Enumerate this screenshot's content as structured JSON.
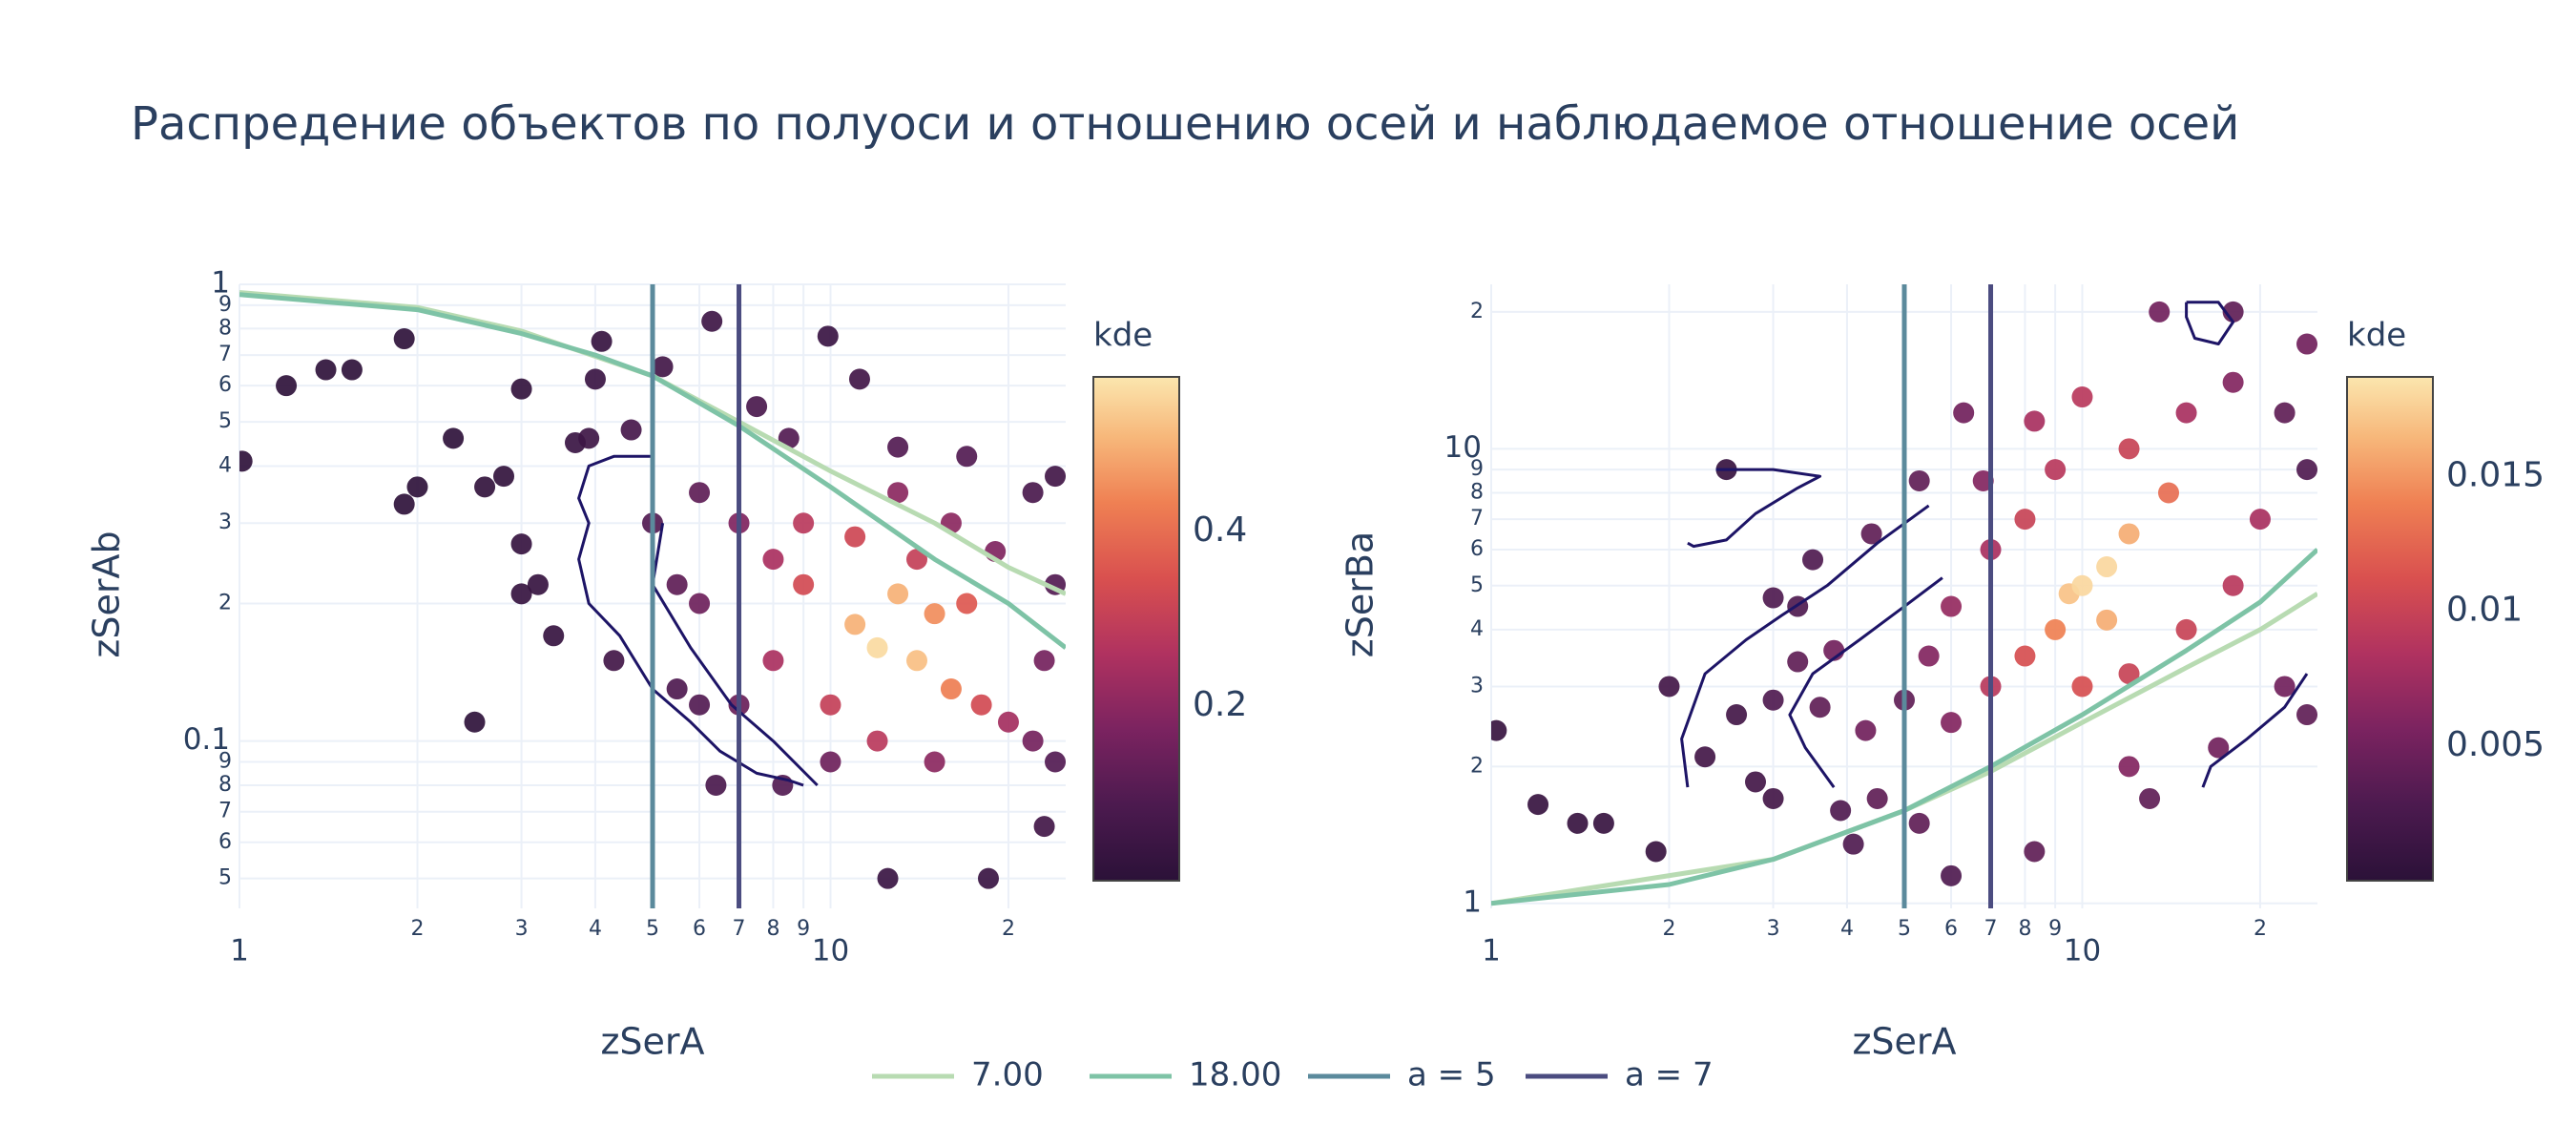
{
  "title": "Распредение объектов по полуоси и отношению осей и наблюдаемое отношение осей",
  "legend": [
    {
      "name": "7.00",
      "color": "#b8dbb2"
    },
    {
      "name": "18.00",
      "color": "#7ec3a6"
    },
    {
      "name": "a = 5",
      "color": "#5b8a9c"
    },
    {
      "name": "a = 7",
      "color": "#4b4c80"
    }
  ],
  "colorscale": [
    [
      0,
      "#2b1138"
    ],
    [
      0.15,
      "#4c1a4f"
    ],
    [
      0.3,
      "#7b2360"
    ],
    [
      0.45,
      "#b03260"
    ],
    [
      0.6,
      "#d9504f"
    ],
    [
      0.75,
      "#ef8053"
    ],
    [
      0.88,
      "#f7b77a"
    ],
    [
      1,
      "#fbe6ae"
    ]
  ],
  "chart_data": [
    {
      "type": "scatter",
      "xlabel": "zSerA",
      "ylabel": "zSerAb",
      "log_x": true,
      "log_y": true,
      "grid": true,
      "xlim": [
        1,
        25
      ],
      "ylim": [
        0.043,
        1
      ],
      "xticks": [
        1,
        2,
        3,
        4,
        5,
        6,
        7,
        8,
        9,
        10,
        {
          "value": 20,
          "label": "2"
        }
      ],
      "yticks": [
        {
          "value": 0.05,
          "label": "5"
        },
        {
          "value": 0.06,
          "label": "6"
        },
        {
          "value": 0.07,
          "label": "7"
        },
        {
          "value": 0.08,
          "label": "8"
        },
        {
          "value": 0.09,
          "label": "9"
        },
        0.1,
        {
          "value": 0.2,
          "label": "2"
        },
        {
          "value": 0.3,
          "label": "3"
        },
        {
          "value": 0.4,
          "label": "4"
        },
        {
          "value": 0.5,
          "label": "5"
        },
        {
          "value": 0.6,
          "label": "6"
        },
        {
          "value": 0.7,
          "label": "7"
        },
        {
          "value": 0.8,
          "label": "8"
        },
        {
          "value": 0.9,
          "label": "9"
        },
        1
      ],
      "colorbar": {
        "title": "kde",
        "clim": [
          0,
          0.577
        ],
        "ticks": [
          0.2,
          0.4
        ]
      },
      "points": {
        "x": [
          1.01,
          1.2,
          1.4,
          1.55,
          1.9,
          1.9,
          2.0,
          2.3,
          2.6,
          2.5,
          2.8,
          3.0,
          3.0,
          3.0,
          3.2,
          3.4,
          3.7,
          3.9,
          4.0,
          4.1,
          4.3,
          4.6,
          5.2,
          6.3,
          5.5,
          6.0,
          6.4,
          8.3,
          9.9,
          11.2,
          12.5,
          18.5,
          23,
          24,
          22,
          17,
          13,
          8.5,
          7.5,
          5,
          5.5,
          7,
          24,
          22,
          6,
          12,
          10,
          23,
          15,
          9,
          13,
          16,
          19,
          24,
          6,
          7,
          8,
          20,
          18,
          11,
          14,
          17,
          8,
          9,
          16,
          15,
          10,
          13,
          14,
          12,
          11
        ],
        "y": [
          0.41,
          0.6,
          0.65,
          0.65,
          0.76,
          0.33,
          0.36,
          0.46,
          0.36,
          0.11,
          0.38,
          0.59,
          0.27,
          0.21,
          0.22,
          0.17,
          0.45,
          0.46,
          0.62,
          0.75,
          0.15,
          0.48,
          0.66,
          0.83,
          0.13,
          0.12,
          0.08,
          0.08,
          0.77,
          0.62,
          0.05,
          0.05,
          0.065,
          0.38,
          0.35,
          0.42,
          0.44,
          0.46,
          0.54,
          0.3,
          0.22,
          0.12,
          0.09,
          0.1,
          0.35,
          0.1,
          0.09,
          0.15,
          0.09,
          0.3,
          0.35,
          0.3,
          0.26,
          0.22,
          0.2,
          0.3,
          0.15,
          0.11,
          0.12,
          0.28,
          0.25,
          0.2,
          0.25,
          0.22,
          0.13,
          0.19,
          0.12,
          0.21,
          0.15,
          0.16,
          0.18
        ],
        "kde": [
          0.01,
          0.01,
          0.01,
          0.01,
          0.01,
          0.01,
          0.01,
          0.01,
          0.02,
          0.01,
          0.02,
          0.02,
          0.03,
          0.03,
          0.03,
          0.03,
          0.04,
          0.05,
          0.04,
          0.03,
          0.06,
          0.07,
          0.06,
          0.05,
          0.09,
          0.1,
          0.08,
          0.1,
          0.04,
          0.06,
          0.04,
          0.04,
          0.06,
          0.06,
          0.08,
          0.1,
          0.1,
          0.1,
          0.08,
          0.1,
          0.12,
          0.14,
          0.1,
          0.16,
          0.12,
          0.28,
          0.15,
          0.16,
          0.2,
          0.28,
          0.2,
          0.2,
          0.18,
          0.1,
          0.15,
          0.18,
          0.25,
          0.24,
          0.33,
          0.32,
          0.3,
          0.36,
          0.25,
          0.33,
          0.43,
          0.45,
          0.3,
          0.5,
          0.52,
          0.56,
          0.5
        ]
      },
      "curves": [
        {
          "x": [
            1,
            2,
            3,
            5,
            7,
            10,
            15,
            20,
            25
          ],
          "y": [
            0.96,
            0.89,
            0.79,
            0.63,
            0.5,
            0.39,
            0.3,
            0.24,
            0.21
          ]
        },
        {
          "x": [
            1,
            2,
            3,
            4,
            5,
            7,
            10,
            15,
            20,
            25
          ],
          "y": [
            0.95,
            0.88,
            0.78,
            0.7,
            0.63,
            0.49,
            0.36,
            0.25,
            0.2,
            0.16
          ]
        }
      ],
      "vlines": [
        5,
        7
      ],
      "contour_color": "#1d1466",
      "contours": [
        {
          "x": [
            5,
            4.3,
            3.9,
            3.75,
            3.9,
            3.75,
            3.9,
            4.4,
            5,
            5.8,
            6.5,
            7.5,
            8.5,
            9
          ],
          "y": [
            0.42,
            0.42,
            0.4,
            0.34,
            0.3,
            0.25,
            0.2,
            0.17,
            0.13,
            0.11,
            0.095,
            0.085,
            0.082,
            0.08
          ]
        },
        {
          "x": [
            5.2,
            5,
            5.8,
            6.8,
            8,
            9.5
          ],
          "y": [
            0.3,
            0.22,
            0.16,
            0.12,
            0.1,
            0.08
          ]
        }
      ]
    },
    {
      "type": "scatter",
      "xlabel": "zSerA",
      "ylabel": "zSerBa",
      "log_x": true,
      "log_y": true,
      "grid": true,
      "xlim": [
        1,
        25
      ],
      "ylim": [
        0.975,
        23
      ],
      "xticks": [
        1,
        2,
        3,
        4,
        5,
        6,
        7,
        8,
        9,
        10,
        {
          "value": 20,
          "label": "2"
        }
      ],
      "yticks": [
        1,
        2,
        3,
        4,
        5,
        6,
        7,
        8,
        9,
        10,
        {
          "value": 20,
          "label": "2"
        }
      ],
      "colorbar": {
        "title": "kde",
        "clim": [
          0,
          0.0187
        ],
        "ticks": [
          0.005,
          0.01,
          0.015
        ]
      },
      "points": {
        "x": [
          1.02,
          1.2,
          1.4,
          1.55,
          1.9,
          2.0,
          2.3,
          2.5,
          2.6,
          2.8,
          3.0,
          3.0,
          3.0,
          3.3,
          3.5,
          3.3,
          3.6,
          3.8,
          3.9,
          4.1,
          4.3,
          4.5,
          4.4,
          5.3,
          5.3,
          6.0,
          6.3,
          6.8,
          8.3,
          8.3,
          10,
          13,
          13.5,
          18,
          24,
          24,
          22,
          17,
          12,
          5,
          24,
          22,
          5.5,
          6,
          6,
          7,
          7,
          8,
          9,
          12,
          15,
          18,
          20,
          18,
          15,
          12,
          10,
          8,
          14,
          9,
          12,
          11,
          9.5,
          10,
          11
        ],
        "y": [
          2.4,
          1.65,
          1.5,
          1.5,
          1.3,
          3.0,
          2.1,
          9.0,
          2.6,
          1.85,
          2.8,
          1.7,
          4.7,
          4.5,
          5.7,
          3.4,
          2.7,
          3.6,
          1.6,
          1.35,
          2.4,
          1.7,
          6.5,
          8.5,
          1.5,
          1.15,
          12,
          8.5,
          11.5,
          1.3,
          13,
          1.7,
          20,
          20,
          17,
          2.6,
          3.0,
          2.2,
          2.0,
          2.8,
          9,
          12,
          3.5,
          2.5,
          4.5,
          3,
          6,
          3.5,
          9,
          10,
          12,
          14,
          7,
          5,
          4,
          3.2,
          3,
          7,
          8,
          4,
          6.5,
          4.2,
          4.8,
          5,
          5.5
        ],
        "kde": [
          0.001,
          0.001,
          0.001,
          0.001,
          0.001,
          0.002,
          0.002,
          0.001,
          0.002,
          0.002,
          0.003,
          0.002,
          0.003,
          0.003,
          0.003,
          0.004,
          0.004,
          0.005,
          0.003,
          0.003,
          0.005,
          0.004,
          0.004,
          0.004,
          0.004,
          0.003,
          0.005,
          0.006,
          0.008,
          0.004,
          0.009,
          0.004,
          0.005,
          0.004,
          0.005,
          0.004,
          0.005,
          0.005,
          0.006,
          0.004,
          0.003,
          0.004,
          0.006,
          0.006,
          0.007,
          0.009,
          0.008,
          0.011,
          0.009,
          0.01,
          0.008,
          0.006,
          0.008,
          0.009,
          0.01,
          0.01,
          0.011,
          0.01,
          0.013,
          0.014,
          0.016,
          0.016,
          0.017,
          0.018,
          0.018
        ]
      },
      "curves": [
        {
          "x": [
            1,
            3,
            5,
            7,
            10,
            15,
            20,
            25
          ],
          "y": [
            1,
            1.25,
            1.6,
            1.95,
            2.5,
            3.3,
            4,
            4.8
          ]
        },
        {
          "x": [
            1,
            2,
            3,
            5,
            7,
            10,
            15,
            20,
            25
          ],
          "y": [
            1,
            1.1,
            1.25,
            1.6,
            2.0,
            2.6,
            3.6,
            4.6,
            6
          ]
        }
      ],
      "vlines": [
        5,
        7
      ],
      "contour_color": "#1d1466",
      "contours": [
        {
          "x": [
            15,
            17,
            18,
            17,
            15.5,
            15,
            15
          ],
          "y": [
            21,
            21,
            19,
            17,
            17.5,
            19.5,
            21
          ]
        },
        {
          "x": [
            2.4,
            3,
            3.6,
            3.3,
            2.8,
            2.5,
            2.2,
            2.15
          ],
          "y": [
            9,
            9,
            8.7,
            8.2,
            7.2,
            6.3,
            6.1,
            6.2
          ]
        },
        {
          "x": [
            2.15,
            2.1,
            2.3,
            2.7,
            3.1,
            3.7,
            4.5,
            5.5
          ],
          "y": [
            1.8,
            2.3,
            3.2,
            3.8,
            4.3,
            5,
            6.2,
            7.5
          ]
        },
        {
          "x": [
            3.8,
            3.4,
            3.2,
            3.5,
            4.2,
            5,
            5.8
          ],
          "y": [
            1.8,
            2.2,
            2.6,
            3.2,
            3.8,
            4.5,
            5.2
          ]
        },
        {
          "x": [
            16,
            16.5,
            19,
            22,
            24
          ],
          "y": [
            1.8,
            2,
            2.3,
            2.7,
            3.2
          ]
        }
      ]
    }
  ]
}
